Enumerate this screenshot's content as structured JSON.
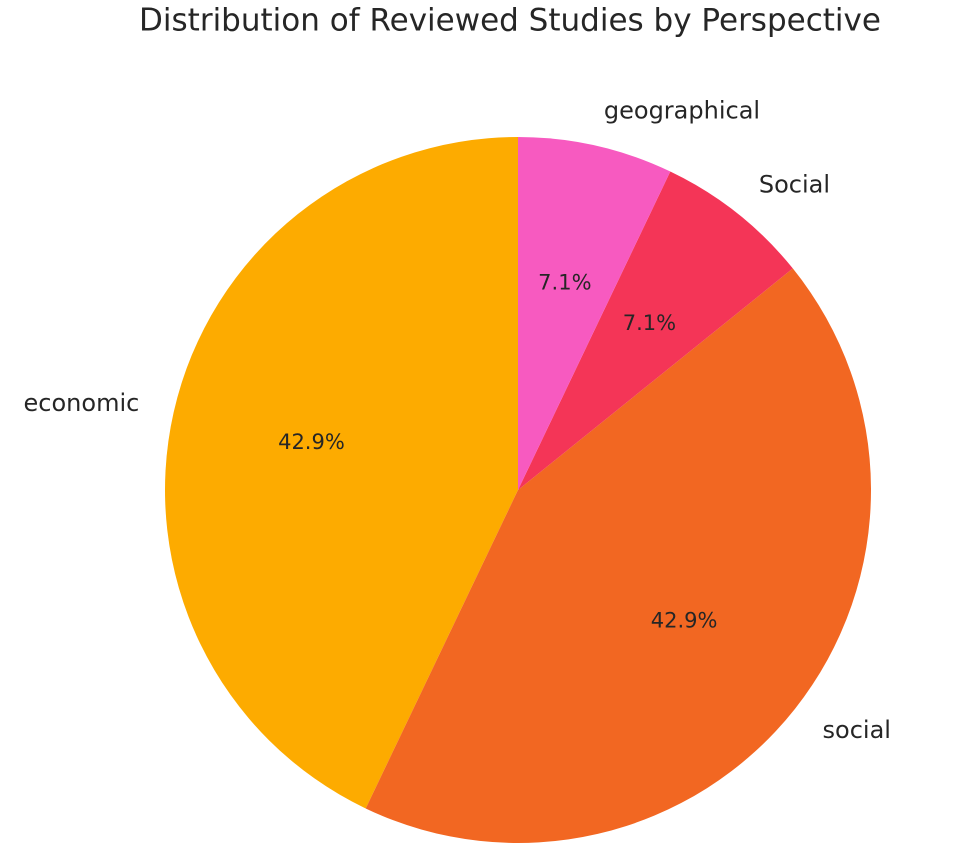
{
  "chart_data": {
    "type": "pie",
    "title": "Distribution of Reviewed Studies by Perspective",
    "categories": [
      "economic",
      "social",
      "Social",
      "geographical"
    ],
    "values": [
      42.9,
      42.9,
      7.1,
      7.1
    ],
    "value_labels": [
      "42.9%",
      "42.9%",
      "7.1%",
      "7.1%"
    ],
    "colors": [
      "#fdab00",
      "#f26722",
      "#f43557",
      "#f75ac0"
    ]
  }
}
